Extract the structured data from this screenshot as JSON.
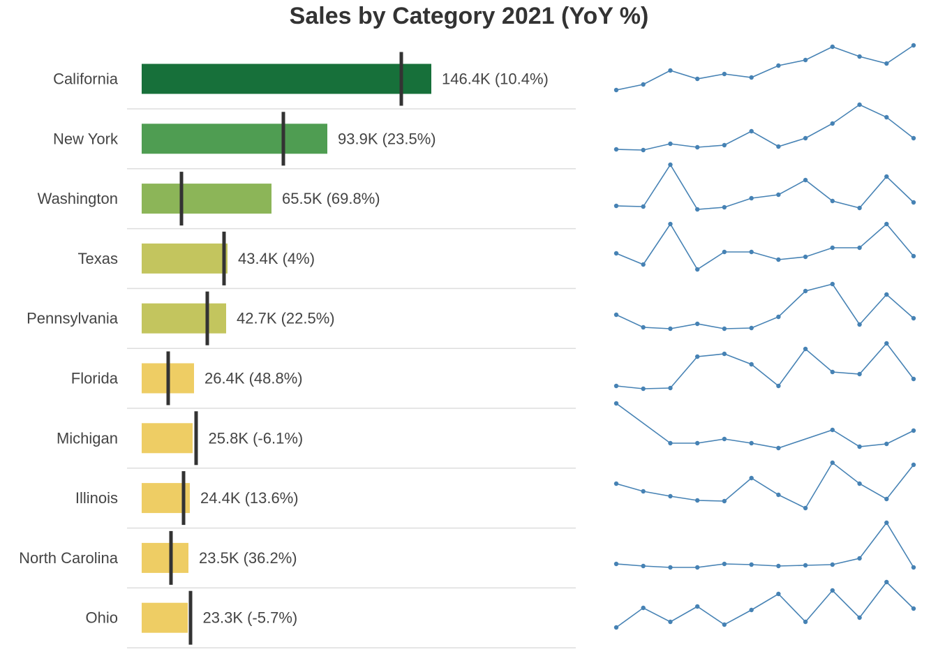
{
  "title": "Sales by Category 2021 (YoY %)",
  "colors": {
    "reference_line": "#333333",
    "divider": "#dddddd",
    "sparkline": "#4682b4",
    "text": "#444444"
  },
  "chart_data": [
    {
      "type": "bar",
      "title": "Sales by Category 2021 (YoY %)",
      "subtype": "bullet (horizontal bar with prior-period reference line)",
      "xlabel": "",
      "ylabel": "",
      "grid": false,
      "legend": null,
      "categories": [
        "California",
        "New York",
        "Washington",
        "Texas",
        "Pennsylvania",
        "Florida",
        "Michigan",
        "Illinois",
        "North Carolina",
        "Ohio"
      ],
      "values_k": [
        146.4,
        93.9,
        65.5,
        43.4,
        42.7,
        26.4,
        25.8,
        24.4,
        23.5,
        23.3
      ],
      "yoy_pct": [
        10.4,
        23.5,
        69.8,
        4,
        22.5,
        48.8,
        -6.1,
        13.6,
        36.2,
        -5.7
      ],
      "data_labels": [
        "146.4K (10.4%)",
        "93.9K (23.5%)",
        "65.5K (69.8%)",
        "43.4K (4%)",
        "42.7K (22.5%)",
        "26.4K (48.8%)",
        "25.8K (-6.1%)",
        "24.4K (13.6%)",
        "23.5K (36.2%)",
        "23.3K (-5.7%)"
      ],
      "reference_values_k_est": [
        131.2,
        71.6,
        20.1,
        41.6,
        33.2,
        13.4,
        27.5,
        21.2,
        14.8,
        24.7
      ],
      "bar_colors": [
        "#17703a",
        "#4f9d52",
        "#8cb558",
        "#c3c55e",
        "#c3c55e",
        "#eecd64",
        "#eecd64",
        "#eecd64",
        "#eecd64",
        "#eecd64"
      ]
    },
    {
      "type": "line",
      "title": "Monthly trend sparklines (per state)",
      "x": [
        1,
        2,
        3,
        4,
        5,
        6,
        7,
        8,
        9,
        10,
        11,
        12
      ],
      "note": "values are relative heights (0 = row min, 100 = row max) estimated from pixels; null = missing point",
      "series": [
        {
          "name": "California",
          "values": [
            0,
            12,
            45,
            25,
            35,
            28,
            57,
            67,
            100,
            78,
            63,
            100
          ]
        },
        {
          "name": "New York",
          "values": [
            0,
            0,
            13,
            6,
            10,
            50,
            7,
            28,
            60,
            100,
            70,
            25
          ]
        },
        {
          "name": "Washington",
          "values": [
            20,
            20,
            100,
            15,
            18,
            36,
            42,
            63,
            30,
            17,
            62,
            24
          ]
        },
        {
          "name": "Texas",
          "values": [
            35,
            10,
            100,
            0,
            47,
            47,
            22,
            28,
            47,
            47,
            100,
            30
          ]
        },
        {
          "name": "Pennsylvania",
          "values": [
            50,
            17,
            13,
            25,
            13,
            13,
            40,
            88,
            100,
            21,
            76,
            33
          ]
        },
        {
          "name": "Florida",
          "values": [
            10,
            6,
            6,
            70,
            78,
            60,
            10,
            82,
            47,
            46,
            100,
            24
          ]
        },
        {
          "name": "Michigan",
          "values": [
            100,
            null,
            30,
            30,
            40,
            30,
            20,
            null,
            60,
            15,
            30,
            57
          ]
        },
        {
          "name": "Illinois",
          "values": [
            55,
            46,
            33,
            28,
            28,
            59,
            30,
            0,
            100,
            54,
            20,
            87
          ]
        },
        {
          "name": "North Carolina",
          "values": [
            7,
            5,
            3,
            3,
            7,
            7,
            5,
            5,
            7,
            14,
            100,
            0
          ]
        },
        {
          "name": "Ohio",
          "values": [
            0,
            48,
            16,
            51,
            5,
            39,
            70,
            10,
            79,
            27,
            100,
            43
          ]
        }
      ]
    }
  ],
  "rows": [
    {
      "state": "California",
      "label": "146.4K (10.4%)",
      "bar_end": 618,
      "ref_x": 575,
      "color": "#17703a",
      "spark": [
        129,
        121,
        101,
        113,
        106,
        111,
        94,
        86,
        67,
        81,
        91,
        65
      ]
    },
    {
      "state": "New York",
      "label": "93.9K (23.5%)",
      "bar_end": 469,
      "ref_x": 406,
      "color": "#4f9d52",
      "spark": [
        214,
        215,
        206,
        211,
        208,
        188,
        210,
        198,
        177,
        150,
        168,
        198
      ]
    },
    {
      "state": "Washington",
      "label": "65.5K (69.8%)",
      "bar_end": 389,
      "ref_x": 260,
      "color": "#8cb558",
      "spark": [
        295,
        296,
        236,
        300,
        297,
        284,
        279,
        258,
        288,
        298,
        253,
        290
      ]
    },
    {
      "state": "Texas",
      "label": "43.4K (4%)",
      "bar_end": 326,
      "ref_x": 321,
      "color": "#c3c55e",
      "spark": [
        363,
        379,
        321,
        386,
        361,
        361,
        372,
        368,
        355,
        355,
        321,
        367
      ]
    },
    {
      "state": "Pennsylvania",
      "label": "42.7K (22.5%)",
      "bar_end": 324,
      "ref_x": 297,
      "color": "#c3c55e",
      "spark": [
        451,
        469,
        471,
        464,
        471,
        470,
        454,
        417,
        407,
        465,
        422,
        456
      ]
    },
    {
      "state": "Florida",
      "label": "26.4K (48.8%)",
      "bar_end": 278,
      "ref_x": 241,
      "color": "#eecd64",
      "spark": [
        553,
        557,
        556,
        511,
        507,
        522,
        553,
        500,
        533,
        536,
        492,
        543
      ]
    },
    {
      "state": "Michigan",
      "label": "25.8K (-6.1%)",
      "bar_end": 276,
      "ref_x": 281,
      "color": "#eecd64",
      "spark": [
        578,
        null,
        635,
        635,
        629,
        635,
        642,
        null,
        616,
        640,
        636,
        617
      ]
    },
    {
      "state": "Illinois",
      "label": "24.4K (13.6%)",
      "bar_end": 272,
      "ref_x": 263,
      "color": "#eecd64",
      "spark": [
        693,
        704,
        711,
        717,
        718,
        685,
        709,
        728,
        663,
        693,
        715,
        666
      ]
    },
    {
      "state": "North Carolina",
      "label": "23.5K (36.2%)",
      "bar_end": 270,
      "ref_x": 245,
      "color": "#eecd64",
      "spark": [
        808,
        811,
        813,
        813,
        808,
        809,
        811,
        810,
        809,
        800,
        749,
        813
      ]
    },
    {
      "state": "Ohio",
      "label": "23.3K (-5.7%)",
      "bar_end": 269,
      "ref_x": 273,
      "color": "#eecd64",
      "spark": [
        899,
        871,
        891,
        869,
        895,
        874,
        851,
        891,
        846,
        885,
        834,
        872
      ]
    }
  ]
}
